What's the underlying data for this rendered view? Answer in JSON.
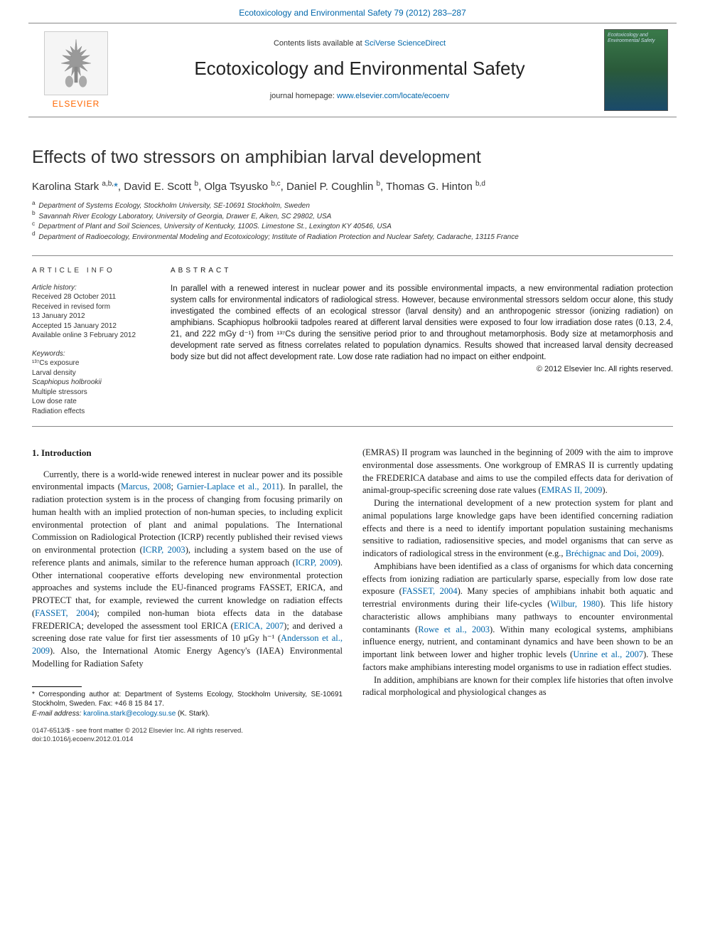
{
  "top_link": "Ecotoxicology and Environmental Safety 79 (2012) 283–287",
  "header": {
    "contents_prefix": "Contents lists available at ",
    "contents_link": "SciVerse ScienceDirect",
    "journal": "Ecotoxicology and Environmental Safety",
    "homepage_prefix": "journal homepage: ",
    "homepage_url": "www.elsevier.com/locate/ecoenv",
    "elsevier": "ELSEVIER",
    "cover_text": "Ecotoxicology and Environmental Safety"
  },
  "article": {
    "title": "Effects of two stressors on amphibian larval development",
    "authors_html": "Karolina Stark <sup>a,b,</sup><a>*</a>, David E. Scott <sup>b</sup>, Olga Tsyusko <sup>b,c</sup>, Daniel P. Coughlin <sup>b</sup>, Thomas G. Hinton <sup>b,d</sup>",
    "affiliations": [
      "Department of Systems Ecology, Stockholm University, SE-10691 Stockholm, Sweden",
      "Savannah River Ecology Laboratory, University of Georgia, Drawer E, Aiken, SC 29802, USA",
      "Department of Plant and Soil Sciences, University of Kentucky, 1100S. Limestone St., Lexington KY 40546, USA",
      "Department of Radioecology, Environmental Modeling and Ecotoxicology; Institute of Radiation Protection and Nuclear Safety, Cadarache, 13115 France"
    ],
    "aff_labels": [
      "a",
      "b",
      "c",
      "d"
    ]
  },
  "info": {
    "heading_left": "article info",
    "history_label": "Article history:",
    "history": [
      "Received 28 October 2011",
      "Received in revised form",
      "13 January 2012",
      "Accepted 15 January 2012",
      "Available online 3 February 2012"
    ],
    "keywords_label": "Keywords:",
    "keywords": [
      "¹³⁷Cs exposure",
      "Larval density",
      "Scaphiopus holbrookii",
      "Multiple stressors",
      "Low dose rate",
      "Radiation effects"
    ],
    "heading_right": "abstract",
    "abstract": "In parallel with a renewed interest in nuclear power and its possible environmental impacts, a new environmental radiation protection system calls for environmental indicators of radiological stress. However, because environmental stressors seldom occur alone, this study investigated the combined effects of an ecological stressor (larval density) and an anthropogenic stressor (ionizing radiation) on amphibians. Scaphiopus holbrookii tadpoles reared at different larval densities were exposed to four low irradiation dose rates (0.13, 2.4, 21, and 222 mGy d⁻¹) from ¹³⁷Cs during the sensitive period prior to and throughout metamorphosis. Body size at metamorphosis and development rate served as fitness correlates related to population dynamics. Results showed that increased larval density decreased body size but did not affect development rate. Low dose rate radiation had no impact on either endpoint.",
    "copyright": "© 2012 Elsevier Inc. All rights reserved."
  },
  "section1": {
    "heading": "1.  Introduction",
    "col1": [
      "Currently, there is a world-wide renewed interest in nuclear power and its possible environmental impacts (<span class='cite'>Marcus, 2008</span>; <span class='cite'>Garnier-Laplace et al., 2011</span>). In parallel, the radiation protection system is in the process of changing from focusing primarily on human health with an implied protection of non-human species, to including explicit environmental protection of plant and animal populations. The International Commission on Radiological Protection (ICRP) recently published their revised views on environmental protection (<span class='cite'>ICRP, 2003</span>), including a system based on the use of reference plants and animals, similar to the reference human approach (<span class='cite'>ICRP, 2009</span>). Other international cooperative efforts developing new environmental protection approaches and systems include the EU-financed programs FASSET, ERICA, and PROTECT that, for example, reviewed the current knowledge on radiation effects (<span class='cite'>FASSET, 2004</span>); compiled non-human biota effects data in the database FREDERICA; developed the assessment tool ERICA (<span class='cite'>ERICA, 2007</span>); and derived a screening dose rate value for first tier assessments of 10 µGy h⁻¹ (<span class='cite'>Andersson et al., 2009</span>). Also, the International Atomic Energy Agency's (IAEA) Environmental Modelling for Radiation Safety"
    ],
    "col2": [
      "(EMRAS) II program was launched in the beginning of 2009 with the aim to improve environmental dose assessments. One workgroup of EMRAS II is currently updating the FREDERICA database and aims to use the compiled effects data for derivation of animal-group-specific screening dose rate values (<span class='cite'>EMRAS II, 2009</span>).",
      "During the international development of a new protection system for plant and animal populations large knowledge gaps have been identified concerning radiation effects and there is a need to identify important population sustaining mechanisms sensitive to radiation, radiosensitive species, and model organisms that can serve as indicators of radiological stress in the environment (e.g., <span class='cite'>Bréchignac and Doi, 2009</span>).",
      "Amphibians have been identified as a class of organisms for which data concerning effects from ionizing radiation are particularly sparse, especially from low dose rate exposure (<span class='cite'>FASSET, 2004</span>). Many species of amphibians inhabit both aquatic and terrestrial environments during their life-cycles (<span class='cite'>Wilbur, 1980</span>). This life history characteristic allows amphibians many pathways to encounter environmental contaminants (<span class='cite'>Rowe et al., 2003</span>). Within many ecological systems, amphibians influence energy, nutrient, and contaminant dynamics and have been shown to be an important link between lower and higher trophic levels (<span class='cite'>Unrine et al., 2007</span>). These factors make amphibians interesting model organisms to use in radiation effect studies.",
      "In addition, amphibians are known for their complex life histories that often involve radical morphological and physiological changes as"
    ]
  },
  "footnote": {
    "corr": "* Corresponding author at: Department of Systems Ecology, Stockholm University, SE-10691 Stockholm, Sweden. Fax: +46 8 15 84 17.",
    "email_label": "E-mail address: ",
    "email": "karolina.stark@ecology.su.se",
    "email_suffix": " (K. Stark)."
  },
  "footer": {
    "issn": "0147-6513/$ - see front matter © 2012 Elsevier Inc. All rights reserved.",
    "doi": "doi:10.1016/j.ecoenv.2012.01.014"
  },
  "colors": {
    "link": "#0066aa",
    "elsevier_orange": "#ff6600",
    "rule": "#888888",
    "text": "#1a1a1a"
  }
}
